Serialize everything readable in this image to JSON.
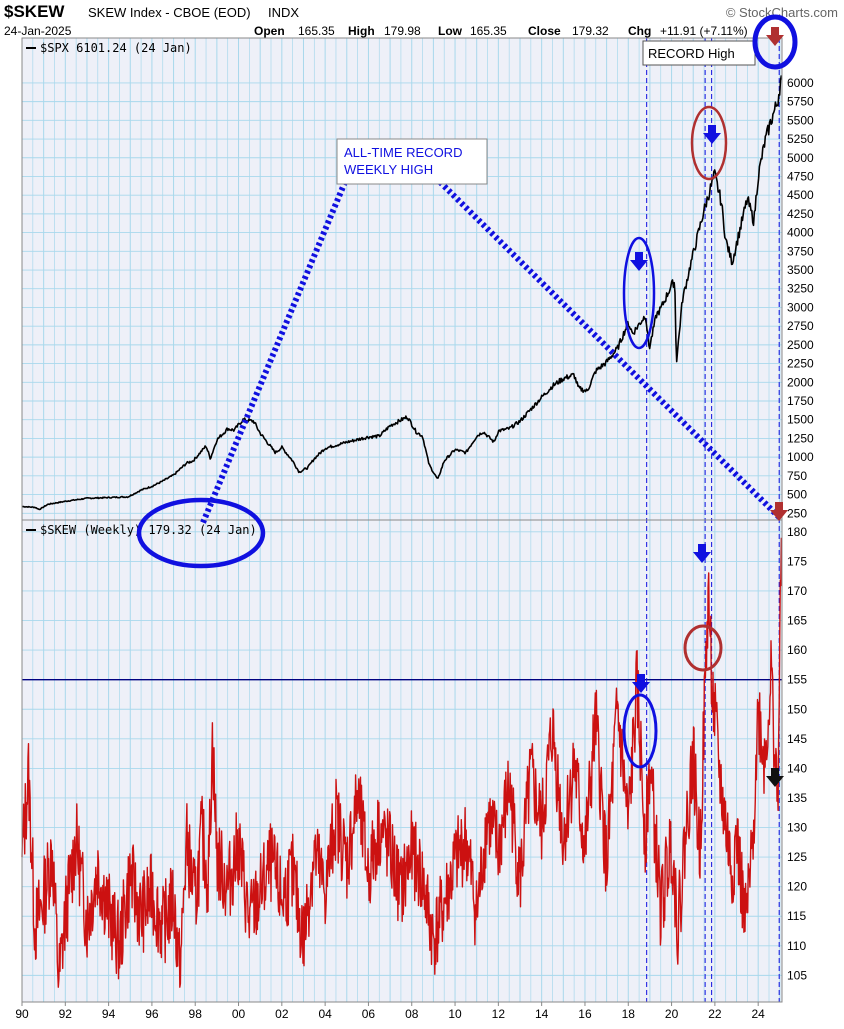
{
  "header": {
    "symbol": "$SKEW",
    "description": "SKEW Index - CBOE (EOD)",
    "exchange": "INDX",
    "date": "24-Jan-2025",
    "open_label": "Open",
    "open_value": "165.35",
    "high_label": "High",
    "high_value": "179.98",
    "low_label": "Low",
    "low_value": "165.35",
    "close_label": "Close",
    "close_value": "179.32",
    "chg_label": "Chg",
    "chg_value": "+11.91 (+7.11%)",
    "watermark": "© StockCharts.com"
  },
  "annotations": {
    "record_high_box": "RECORD High",
    "alltime_line1": "ALL-TIME RECORD",
    "alltime_line2": "WEEKLY HIGH"
  },
  "colors": {
    "background": "#ffffff",
    "plot_bg": "#eef0f8",
    "grid": "#a8d8ec",
    "spx_line": "#000000",
    "skew_line": "#cc1111",
    "annotation_blue": "#1010e0",
    "annotation_red": "#b03030",
    "hline": "#000080"
  },
  "chart_data": [
    {
      "type": "line",
      "title": "$SPX 6101.24 (24 Jan)",
      "legend_label": "$SPX 6101.24 (24 Jan)",
      "xlabel": "",
      "ylabel": "",
      "x_ticks": [
        "90",
        "92",
        "94",
        "96",
        "98",
        "00",
        "02",
        "04",
        "06",
        "08",
        "10",
        "12",
        "14",
        "16",
        "18",
        "20",
        "22",
        "24"
      ],
      "y_ticks": [
        250,
        500,
        750,
        1000,
        1250,
        1500,
        1750,
        2000,
        2250,
        2500,
        2750,
        3000,
        3250,
        3500,
        3750,
        4000,
        4250,
        4500,
        4750,
        5000,
        5250,
        5500,
        5750,
        6000
      ],
      "xlim": [
        1990,
        2025.1
      ],
      "ylim": [
        160,
        6600
      ],
      "grid": true,
      "series": [
        {
          "name": "$SPX",
          "x": [
            1990.0,
            1990.6,
            1990.8,
            1991.2,
            1992.0,
            1993.0,
            1994.0,
            1994.9,
            1995.5,
            1996.0,
            1996.5,
            1997.0,
            1997.6,
            1997.9,
            1998.5,
            1998.7,
            1999.0,
            1999.5,
            1999.8,
            2000.2,
            2000.7,
            2001.0,
            2001.7,
            2002.0,
            2002.5,
            2002.8,
            2003.2,
            2003.5,
            2004.0,
            2005.0,
            2006.0,
            2006.5,
            2007.0,
            2007.8,
            2008.2,
            2008.5,
            2008.8,
            2009.2,
            2009.5,
            2010.0,
            2010.5,
            2011.0,
            2011.3,
            2011.8,
            2012.0,
            2012.5,
            2013.0,
            2013.5,
            2014.0,
            2014.5,
            2015.0,
            2015.5,
            2015.7,
            2016.1,
            2016.5,
            2017.0,
            2017.5,
            2018.0,
            2018.2,
            2018.8,
            2018.97,
            2019.3,
            2019.5,
            2020.0,
            2020.15,
            2020.22,
            2020.5,
            2020.9,
            2021.5,
            2021.99,
            2022.3,
            2022.5,
            2022.8,
            2023.0,
            2023.5,
            2023.8,
            2024.0,
            2024.3,
            2024.6,
            2024.9,
            2025.07
          ],
          "values": [
            340,
            330,
            300,
            370,
            410,
            450,
            460,
            470,
            560,
            610,
            680,
            760,
            920,
            950,
            1150,
            980,
            1230,
            1380,
            1360,
            1500,
            1480,
            1320,
            1060,
            1130,
            950,
            800,
            860,
            980,
            1120,
            1200,
            1270,
            1280,
            1420,
            1540,
            1340,
            1280,
            900,
            700,
            950,
            1100,
            1060,
            1280,
            1340,
            1200,
            1350,
            1380,
            1480,
            1640,
            1800,
            1950,
            2050,
            2100,
            1920,
            1880,
            2150,
            2270,
            2450,
            2800,
            2650,
            2900,
            2450,
            2900,
            2980,
            3300,
            3350,
            2250,
            3100,
            3600,
            4300,
            4780,
            4400,
            3900,
            3600,
            3850,
            4450,
            4150,
            4750,
            5200,
            5500,
            5750,
            6100
          ]
        }
      ]
    },
    {
      "type": "line",
      "title": "$SKEW (Weekly) 179.32 (24 Jan)",
      "legend_label": "$SKEW (Weekly) 179.32 (24 Jan)",
      "xlabel": "",
      "ylabel": "",
      "x_ticks": [
        "90",
        "92",
        "94",
        "96",
        "98",
        "00",
        "02",
        "04",
        "06",
        "08",
        "10",
        "12",
        "14",
        "16",
        "18",
        "20",
        "22",
        "24"
      ],
      "y_ticks": [
        105,
        110,
        115,
        120,
        125,
        130,
        135,
        140,
        145,
        150,
        155,
        160,
        165,
        170,
        175,
        180
      ],
      "xlim": [
        1990,
        2025.1
      ],
      "ylim": [
        100.5,
        182
      ],
      "reference_line": 155,
      "grid": true,
      "series": [
        {
          "name": "$SKEW",
          "x": [
            1990.0,
            1990.3,
            1990.6,
            1991.0,
            1991.4,
            1991.7,
            1992.0,
            1992.5,
            1993.0,
            1993.5,
            1994.0,
            1994.5,
            1995.0,
            1995.5,
            1996.0,
            1996.5,
            1997.0,
            1997.3,
            1997.6,
            1998.0,
            1998.3,
            1998.6,
            1998.8,
            1999.0,
            1999.5,
            2000.0,
            2000.5,
            2001.0,
            2001.5,
            2002.0,
            2002.5,
            2003.0,
            2003.5,
            2004.0,
            2004.5,
            2005.0,
            2005.5,
            2006.0,
            2006.5,
            2007.0,
            2007.5,
            2008.0,
            2008.5,
            2009.0,
            2009.5,
            2010.0,
            2010.5,
            2011.0,
            2011.5,
            2012.0,
            2012.5,
            2013.0,
            2013.5,
            2014.0,
            2014.5,
            2015.0,
            2015.5,
            2016.0,
            2016.5,
            2017.0,
            2017.5,
            2018.0,
            2018.4,
            2018.8,
            2019.0,
            2019.5,
            2020.0,
            2020.3,
            2020.6,
            2021.0,
            2021.3,
            2021.5,
            2021.7,
            2021.9,
            2022.3,
            2022.8,
            2023.0,
            2023.4,
            2023.7,
            2024.0,
            2024.3,
            2024.6,
            2024.9,
            2025.07
          ],
          "values": [
            125,
            139,
            113,
            118,
            126,
            104,
            115,
            128,
            114,
            123,
            116,
            110,
            122,
            115,
            119,
            113,
            118,
            105,
            128,
            117,
            129,
            121,
            145,
            125,
            120,
            127,
            114,
            119,
            124,
            118,
            122,
            111,
            126,
            119,
            132,
            124,
            135,
            122,
            130,
            126,
            119,
            126,
            121,
            111,
            117,
            124,
            128,
            115,
            132,
            126,
            137,
            121,
            139,
            130,
            147,
            128,
            141,
            126,
            148,
            123,
            150,
            130,
            154,
            128,
            141,
            116,
            128,
            113,
            127,
            142,
            125,
            148,
            170,
            152,
            136,
            122,
            129,
            113,
            124,
            150,
            141,
            156,
            133,
            179
          ]
        }
      ]
    }
  ]
}
